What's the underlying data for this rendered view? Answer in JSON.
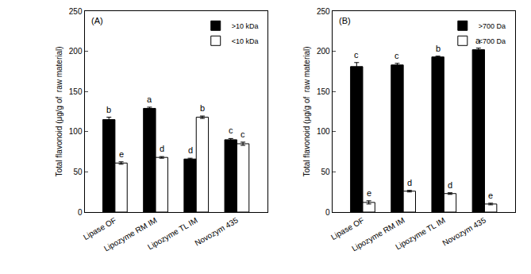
{
  "chart_data": [
    {
      "type": "bar",
      "title": "(A)",
      "categories": [
        "Lipase OF",
        "Lipozyme RM IM",
        "Lipozyme TL IM",
        "Novozym 435"
      ],
      "y_label": "Total flavonoid (μg/g of  raw material)",
      "series": [
        {
          "name": ">10 kDa",
          "color": "#000000",
          "values": [
            115,
            129,
            66,
            90
          ],
          "errors": [
            3,
            1.5,
            1,
            1.5
          ],
          "annotations": [
            "b",
            "a",
            "d",
            "c"
          ]
        },
        {
          "name": "<10 kDa",
          "color": "#ffffff",
          "values": [
            61,
            68,
            118,
            85
          ],
          "errors": [
            1.5,
            1,
            1.5,
            2
          ],
          "annotations": [
            "e",
            "d",
            "b",
            "c"
          ]
        }
      ],
      "ylim": [
        0,
        250
      ],
      "yticks": [
        0,
        50,
        100,
        150,
        200,
        250
      ],
      "grid": false,
      "legend": "upper right"
    },
    {
      "type": "bar",
      "title": "(B)",
      "categories": [
        "Lipase OF",
        "Lipozyme RM IM",
        "Lipozyme TL IM",
        "Novozym 435"
      ],
      "y_label": "Total flavonoid (μg/g of  raw material)",
      "series": [
        {
          "name": ">700 Da",
          "color": "#000000",
          "values": [
            181,
            183,
            193,
            202
          ],
          "errors": [
            5,
            2,
            1,
            2
          ],
          "annotations": [
            "c",
            "c",
            "b",
            "a"
          ]
        },
        {
          "name": "<700 Da",
          "color": "#ffffff",
          "values": [
            12,
            26,
            23,
            10
          ],
          "errors": [
            2,
            1,
            1,
            1
          ],
          "annotations": [
            "e",
            "d",
            "d",
            "e"
          ]
        }
      ],
      "ylim": [
        0,
        250
      ],
      "yticks": [
        0,
        50,
        100,
        150,
        200,
        250
      ],
      "grid": false,
      "legend": "upper right"
    }
  ]
}
